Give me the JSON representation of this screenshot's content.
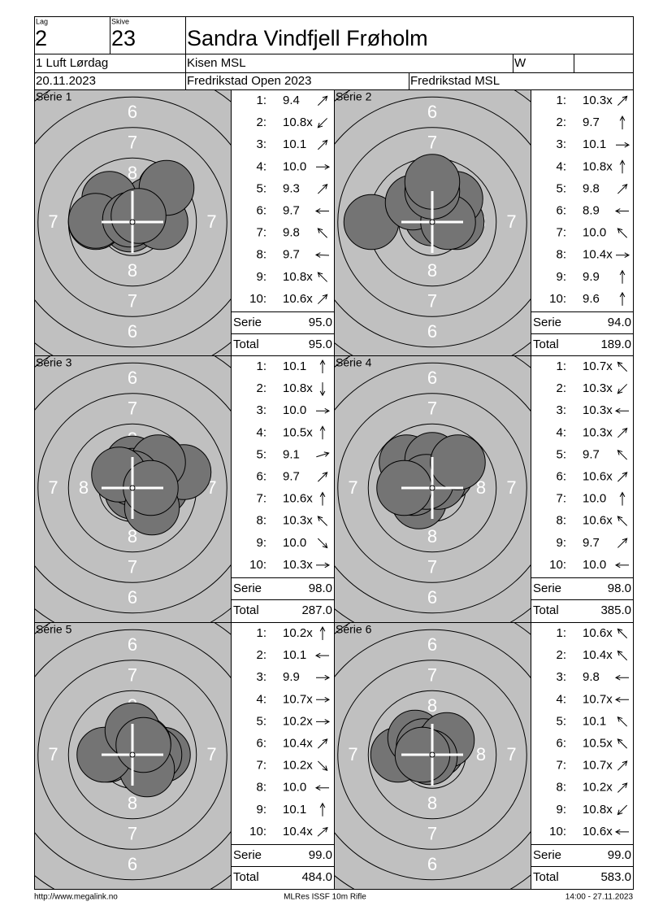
{
  "header": {
    "lag_label": "Lag",
    "lag": "2",
    "skive_label": "Skive",
    "skive": "23",
    "name": "Sandra Vindfjell Frøholm",
    "class": "1 Luft Lørdag",
    "club": "Kisen MSL",
    "w": "W",
    "date": "20.11.2023",
    "event": "Fredrikstad Open 2023",
    "organizer": "Fredrikstad MSL"
  },
  "target": {
    "ring_labels": [
      "8",
      "7",
      "6"
    ]
  },
  "row_labels": {
    "serie": "Serie",
    "total": "Total"
  },
  "series": [
    {
      "label": "Série 1",
      "serie": "95.0",
      "total": "95.0",
      "shots": [
        {
          "n": "1:",
          "score": "9.4",
          "x": 2.7,
          "y": 2.7
        },
        {
          "n": "2:",
          "score": "10.8x",
          "x": -0.2,
          "y": -0.2
        },
        {
          "n": "3:",
          "score": "10.1",
          "x": 1.4,
          "y": 1.4
        },
        {
          "n": "4:",
          "score": "10.0",
          "x": 2.3,
          "y": 0
        },
        {
          "n": "5:",
          "score": "9.3",
          "x": 2.8,
          "y": 2.8
        },
        {
          "n": "6:",
          "score": "9.7",
          "x": -3.0,
          "y": 0
        },
        {
          "n": "7:",
          "score": "9.8",
          "x": -1.9,
          "y": 1.9
        },
        {
          "n": "8:",
          "score": "9.7",
          "x": -3.0,
          "y": 0.1
        },
        {
          "n": "9:",
          "score": "10.8x",
          "x": -0.2,
          "y": 0.2
        },
        {
          "n": "10:",
          "score": "10.6x",
          "x": 0.5,
          "y": 0.5
        }
      ]
    },
    {
      "label": "Série 2",
      "serie": "94.0",
      "total": "189.0",
      "shots": [
        {
          "n": "1:",
          "score": "10.3x",
          "x": 1.1,
          "y": 1.1
        },
        {
          "n": "2:",
          "score": "9.7",
          "x": 0,
          "y": 3.0
        },
        {
          "n": "3:",
          "score": "10.1",
          "x": 2.0,
          "y": 0
        },
        {
          "n": "4:",
          "score": "10.8x",
          "x": 0,
          "y": 0.3
        },
        {
          "n": "5:",
          "score": "9.8",
          "x": 1.9,
          "y": 1.9
        },
        {
          "n": "6:",
          "score": "8.9",
          "x": -5.0,
          "y": 0
        },
        {
          "n": "7:",
          "score": "10.0",
          "x": -1.6,
          "y": 1.6
        },
        {
          "n": "8:",
          "score": "10.4x",
          "x": 1.3,
          "y": 0
        },
        {
          "n": "9:",
          "score": "9.9",
          "x": 0,
          "y": 2.5
        },
        {
          "n": "10:",
          "score": "9.6",
          "x": 0,
          "y": 3.3
        }
      ]
    },
    {
      "label": "Série 3",
      "serie": "98.0",
      "total": "287.0",
      "shots": [
        {
          "n": "1:",
          "score": "10.1",
          "x": 0,
          "y": 2.0
        },
        {
          "n": "2:",
          "score": "10.8x",
          "x": 0,
          "y": -0.3
        },
        {
          "n": "3:",
          "score": "10.0",
          "x": 2.3,
          "y": 0
        },
        {
          "n": "4:",
          "score": "10.5x",
          "x": 0,
          "y": 1.0
        },
        {
          "n": "5:",
          "score": "9.1",
          "x": 4.2,
          "y": 1.3
        },
        {
          "n": "6:",
          "score": "9.7",
          "x": 2.1,
          "y": 2.1
        },
        {
          "n": "7:",
          "score": "10.6x",
          "x": 0,
          "y": 0.8
        },
        {
          "n": "8:",
          "score": "10.3x",
          "x": -1.1,
          "y": 1.1
        },
        {
          "n": "9:",
          "score": "10.0",
          "x": 1.6,
          "y": -1.6
        },
        {
          "n": "10:",
          "score": "10.3x",
          "x": 1.5,
          "y": 0
        }
      ]
    },
    {
      "label": "Série 4",
      "serie": "98.0",
      "total": "385.0",
      "shots": [
        {
          "n": "1:",
          "score": "10.7x",
          "x": -0.4,
          "y": 0.4
        },
        {
          "n": "2:",
          "score": "10.3x",
          "x": -1.1,
          "y": -1.1
        },
        {
          "n": "3:",
          "score": "10.3x",
          "x": -1.5,
          "y": 0
        },
        {
          "n": "4:",
          "score": "10.3x",
          "x": 1.1,
          "y": 1.1
        },
        {
          "n": "5:",
          "score": "9.7",
          "x": -2.1,
          "y": 2.1
        },
        {
          "n": "6:",
          "score": "10.6x",
          "x": 0.5,
          "y": 0.5
        },
        {
          "n": "7:",
          "score": "10.0",
          "x": 0,
          "y": 2.3
        },
        {
          "n": "8:",
          "score": "10.6x",
          "x": -0.5,
          "y": 0.5
        },
        {
          "n": "9:",
          "score": "9.7",
          "x": 2.1,
          "y": 2.1
        },
        {
          "n": "10:",
          "score": "10.0",
          "x": -2.3,
          "y": 0
        }
      ]
    },
    {
      "label": "Série 5",
      "serie": "99.0",
      "total": "484.0",
      "shots": [
        {
          "n": "1:",
          "score": "10.2x",
          "x": 0,
          "y": 1.8
        },
        {
          "n": "2:",
          "score": "10.1",
          "x": -2.0,
          "y": 0
        },
        {
          "n": "3:",
          "score": "9.9",
          "x": 2.5,
          "y": 0
        },
        {
          "n": "4:",
          "score": "10.7x",
          "x": 0.5,
          "y": 0
        },
        {
          "n": "5:",
          "score": "10.2x",
          "x": 1.8,
          "y": 0
        },
        {
          "n": "6:",
          "score": "10.4x",
          "x": 0.9,
          "y": 0.9
        },
        {
          "n": "7:",
          "score": "10.2x",
          "x": 1.2,
          "y": -1.2
        },
        {
          "n": "8:",
          "score": "10.0",
          "x": -2.3,
          "y": 0
        },
        {
          "n": "9:",
          "score": "10.1",
          "x": 0,
          "y": 2.0
        },
        {
          "n": "10:",
          "score": "10.4x",
          "x": 0.9,
          "y": 0.8
        }
      ]
    },
    {
      "label": "Série 6",
      "serie": "99.0",
      "total": "583.0",
      "shots": [
        {
          "n": "1:",
          "score": "10.6x",
          "x": -0.5,
          "y": 0.5
        },
        {
          "n": "2:",
          "score": "10.4x",
          "x": -0.9,
          "y": 0.9
        },
        {
          "n": "3:",
          "score": "9.8",
          "x": -2.8,
          "y": 0
        },
        {
          "n": "4:",
          "score": "10.7x",
          "x": -0.5,
          "y": 0
        },
        {
          "n": "5:",
          "score": "10.1",
          "x": -1.4,
          "y": 1.4
        },
        {
          "n": "6:",
          "score": "10.5x",
          "x": -0.7,
          "y": 0.7
        },
        {
          "n": "7:",
          "score": "10.7x",
          "x": 0.4,
          "y": 0.4
        },
        {
          "n": "8:",
          "score": "10.2x",
          "x": 1.2,
          "y": 1.2
        },
        {
          "n": "9:",
          "score": "10.8x",
          "x": -0.2,
          "y": -0.2
        },
        {
          "n": "10:",
          "score": "10.6x",
          "x": -0.8,
          "y": 0
        }
      ]
    }
  ],
  "footer": {
    "url": "http://www.megalink.no",
    "program": "MLRes ISSF 10m Rifle",
    "time": "14:00 - 27.11.2023"
  }
}
